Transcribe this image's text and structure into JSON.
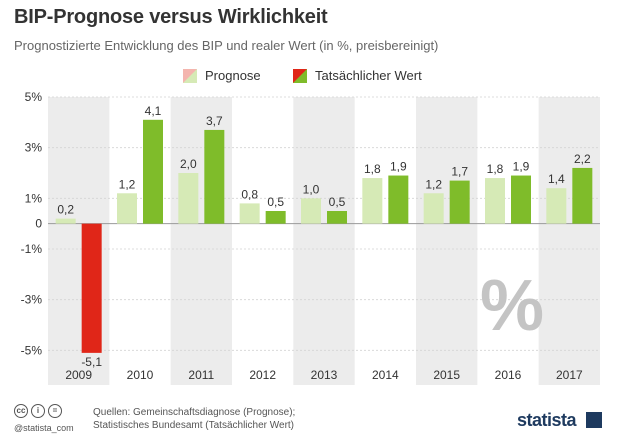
{
  "title": "BIP-Prognose versus Wirklichkeit",
  "subtitle": "Prognostizierte Entwicklung des BIP und realer Wert (in %, preisbereinigt)",
  "legend": {
    "forecast": "Prognose",
    "actual": "Tatsächlicher Wert"
  },
  "colors": {
    "forecast": "#d6eab6",
    "actual": "#7fbc2a",
    "actual_negative": "#e02618",
    "stripe": "#ececec"
  },
  "chart_data": {
    "type": "bar",
    "categories": [
      "2009",
      "2010",
      "2011",
      "2012",
      "2013",
      "2014",
      "2015",
      "2016",
      "2017"
    ],
    "series": [
      {
        "name": "Prognose",
        "values": [
          0.2,
          1.2,
          2.0,
          0.8,
          1.0,
          1.8,
          1.2,
          1.8,
          1.4
        ]
      },
      {
        "name": "Tatsächlicher Wert",
        "values": [
          -5.1,
          4.1,
          3.7,
          0.5,
          0.5,
          1.9,
          1.7,
          1.9,
          2.2
        ]
      }
    ],
    "value_labels": {
      "forecast": [
        "0,2",
        "1,2",
        "2,0",
        "0,8",
        "1,0",
        "1,8",
        "1,2",
        "1,8",
        "1,4"
      ],
      "actual": [
        "-5,1",
        "4,1",
        "3,7",
        "0,5",
        "0,5",
        "1,9",
        "1,7",
        "1,9",
        "2,2"
      ]
    },
    "yticks": [
      5,
      3,
      1,
      0,
      -1,
      -3,
      -5
    ],
    "ytick_labels": [
      "5%",
      "3%",
      "1%",
      "0",
      "-1%",
      "-3%",
      "-5%"
    ],
    "ylim": [
      -5.5,
      5.0
    ],
    "grid": true,
    "legend_position": "top-center"
  },
  "watermark": "%",
  "footer": {
    "credit": "@statista_com",
    "sources_line1": "Quellen: Gemeinschaftsdiagnose (Prognose);",
    "sources_line2": "Statistisches Bundesamt (Tatsächlicher Wert)",
    "brand": "statista"
  }
}
